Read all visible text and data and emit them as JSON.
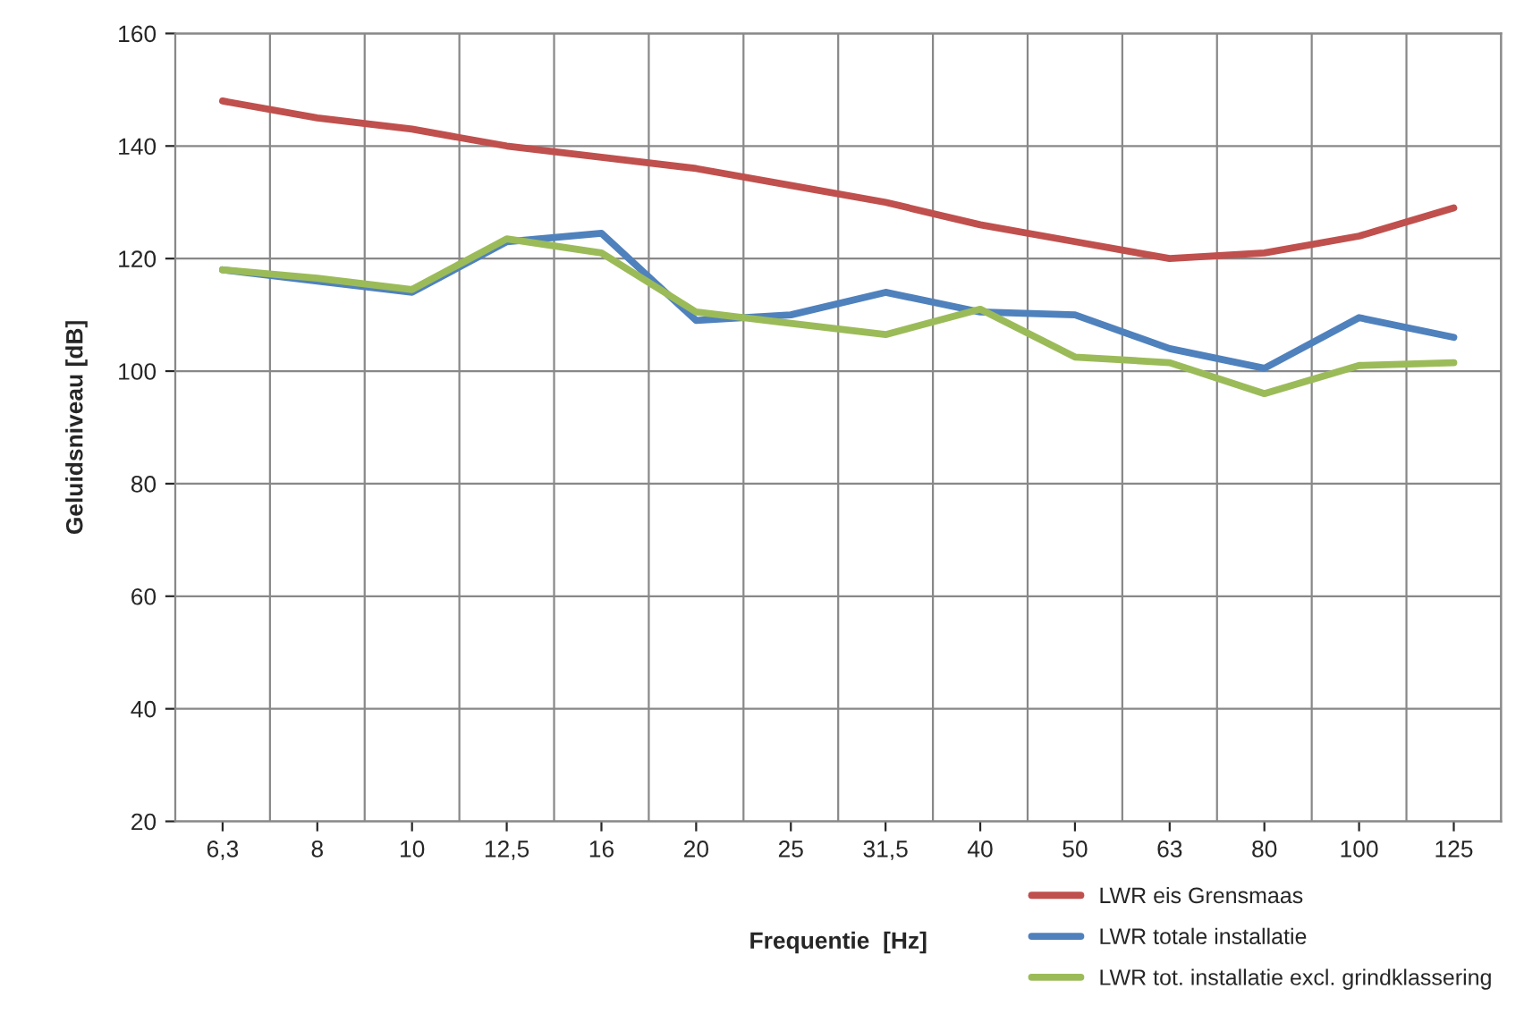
{
  "chart_data": {
    "type": "line",
    "xlabel": "Frequentie  [Hz]",
    "ylabel": "Geluidsniveau [dB]",
    "categories": [
      "6,3",
      "8",
      "10",
      "12,5",
      "16",
      "20",
      "25",
      "31,5",
      "40",
      "50",
      "63",
      "80",
      "100",
      "125"
    ],
    "series": [
      {
        "name": "LWR eis Grensmaas",
        "color": "#c0504d",
        "values": [
          148,
          145,
          143,
          140,
          138,
          136,
          133,
          130,
          126,
          123,
          120,
          121,
          124,
          129
        ]
      },
      {
        "name": "LWR totale installatie",
        "color": "#4f81bd",
        "values": [
          118,
          116,
          114,
          123,
          124.5,
          109,
          110,
          114,
          110.5,
          110,
          104,
          100.5,
          109.5,
          106
        ]
      },
      {
        "name": "LWR tot. installatie excl. grindklassering",
        "color": "#9bbb59",
        "values": [
          118,
          116.5,
          114.5,
          123.5,
          121,
          110.5,
          108.5,
          106.5,
          111,
          102.5,
          101.5,
          96,
          101,
          101.5
        ]
      }
    ],
    "ylim": [
      20,
      160
    ],
    "yticks": [
      20,
      40,
      60,
      80,
      100,
      120,
      140,
      160
    ],
    "grid": true,
    "legend": "bottom right",
    "marker": "none",
    "line_style": "solid"
  }
}
